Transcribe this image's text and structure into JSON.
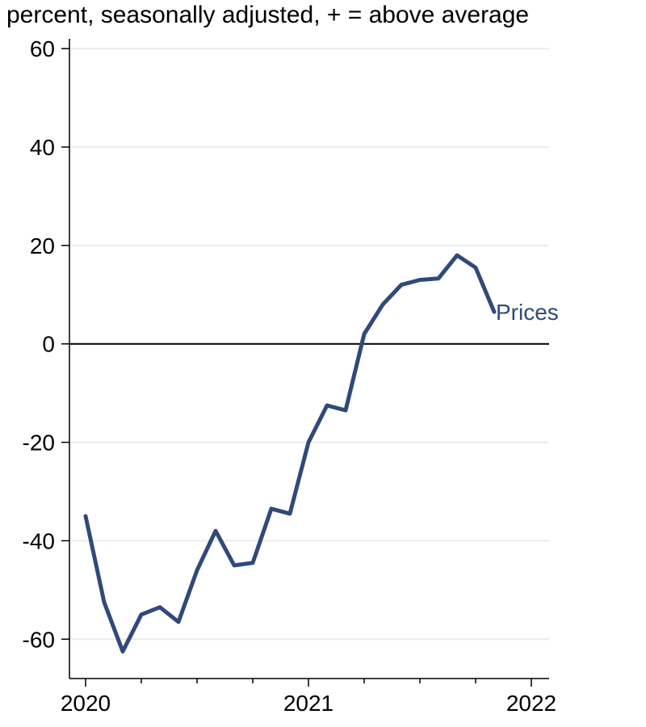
{
  "chart_data": {
    "type": "line",
    "title": "",
    "subtitle": "percent, seasonally adjusted, + = above average",
    "xlabel": "",
    "ylabel": "",
    "ylim": [
      -68,
      62
    ],
    "xlim": [
      "2020-01",
      "2022-01"
    ],
    "y_ticks": [
      60,
      40,
      20,
      0,
      -20,
      -40,
      -60
    ],
    "y_tick_labels": [
      "60",
      "40",
      "20",
      "0",
      "-20",
      "-40",
      "-60"
    ],
    "x_ticks": [
      "2020-01",
      "2021-01",
      "2022-01"
    ],
    "x_tick_labels": [
      "2020",
      "2021",
      "2022"
    ],
    "grid": true,
    "zero_line": true,
    "series": [
      {
        "name": "Prices",
        "color": "#2f4a7a",
        "x": [
          "2020-01",
          "2020-02",
          "2020-03",
          "2020-04",
          "2020-05",
          "2020-06",
          "2020-07",
          "2020-08",
          "2020-09",
          "2020-10",
          "2020-11",
          "2020-12",
          "2021-01",
          "2021-02",
          "2021-03",
          "2021-04",
          "2021-05",
          "2021-06",
          "2021-07",
          "2021-08",
          "2021-09",
          "2021-10",
          "2021-11"
        ],
        "values": [
          -35,
          -52.5,
          -62.5,
          -55,
          -53.5,
          -56.5,
          -46,
          -38,
          -45,
          -44.5,
          -33.5,
          -34.5,
          -20,
          -12.5,
          -13.5,
          2,
          8,
          12,
          13,
          13.3,
          18,
          15.5,
          6.5
        ]
      }
    ]
  }
}
